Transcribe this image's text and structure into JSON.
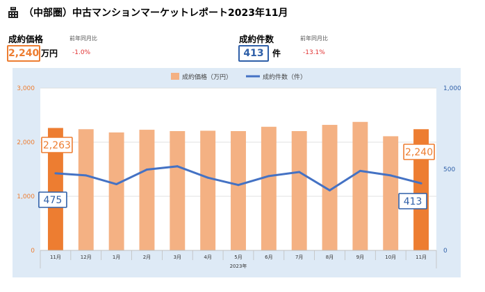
{
  "header": {
    "title": "（中部圏）中古マンションマーケットレポート2023年11月",
    "icon": "building-icon"
  },
  "kpi": {
    "price": {
      "label": "成約価格",
      "sub": "前年同月比",
      "value": "2,240",
      "unit": "万円",
      "change": "-1.0%",
      "color": "#ed7d31"
    },
    "count": {
      "label": "成約件数",
      "sub": "前年同月比",
      "value": "413",
      "unit": "件",
      "change": "-13.1%",
      "color": "#2e5fa8"
    }
  },
  "chart_data": {
    "type": "bar",
    "categories": [
      "11月",
      "12月",
      "1月",
      "2月",
      "3月",
      "4月",
      "5月",
      "6月",
      "7月",
      "8月",
      "9月",
      "10月",
      "11月"
    ],
    "year_label": "2023年",
    "series": [
      {
        "name": "成約価格（万円）",
        "type": "bar",
        "axis": "left",
        "values": [
          2263,
          2240,
          2180,
          2230,
          2205,
          2212,
          2205,
          2285,
          2205,
          2320,
          2375,
          2110,
          2240
        ],
        "color": "#f4b183",
        "highlight_color": "#ed7d31"
      },
      {
        "name": "成約件数（件）",
        "type": "line",
        "axis": "right",
        "values": [
          475,
          462,
          408,
          498,
          518,
          448,
          403,
          458,
          483,
          370,
          490,
          462,
          413
        ],
        "color": "#4472c4"
      }
    ],
    "y_left": {
      "ylim": [
        0,
        3000
      ],
      "ticks": [
        "0",
        "1,000",
        "2,000",
        "3,000"
      ]
    },
    "y_right": {
      "ylim": [
        0,
        1000
      ],
      "ticks": [
        "0",
        "500",
        "1,000"
      ]
    },
    "callouts": {
      "first_price": "2,263",
      "last_price": "2,240",
      "first_count": "475",
      "last_count": "413"
    },
    "legend_position": "top"
  }
}
